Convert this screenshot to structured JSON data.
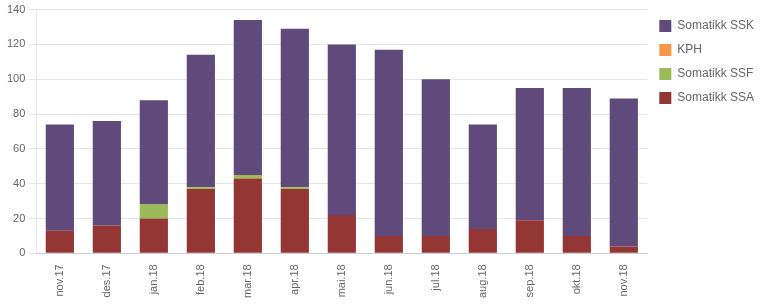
{
  "chart_data": {
    "type": "bar",
    "stacked": true,
    "categories": [
      "nov.17",
      "des.17",
      "jan.18",
      "feb.18",
      "mar.18",
      "apr.18",
      "mai.18",
      "jun.18",
      "jul.18",
      "aug.18",
      "sep.18",
      "okt.18",
      "nov.18"
    ],
    "series": [
      {
        "name": "Somatikk SSA",
        "color": "#943634",
        "values": [
          13,
          16,
          20,
          37,
          43,
          37,
          22,
          10,
          10,
          14,
          19,
          10,
          4
        ]
      },
      {
        "name": "Somatikk SSF",
        "color": "#9BBB59",
        "values": [
          0,
          0,
          8,
          1,
          2,
          1,
          0,
          0,
          0,
          0,
          0,
          0,
          0
        ]
      },
      {
        "name": "KPH",
        "color": "#F79646",
        "values": [
          0,
          0,
          0,
          0,
          0,
          0,
          0,
          0,
          0,
          0,
          0,
          0,
          0
        ]
      },
      {
        "name": "Somatikk SSK",
        "color": "#604A7B",
        "values": [
          61,
          60,
          60,
          76,
          89,
          91,
          98,
          107,
          90,
          60,
          76,
          85,
          85
        ]
      }
    ],
    "ylim": [
      0,
      140
    ],
    "yticks": [
      0,
      20,
      40,
      60,
      80,
      100,
      120,
      140
    ],
    "grid": true,
    "legend": "right"
  }
}
